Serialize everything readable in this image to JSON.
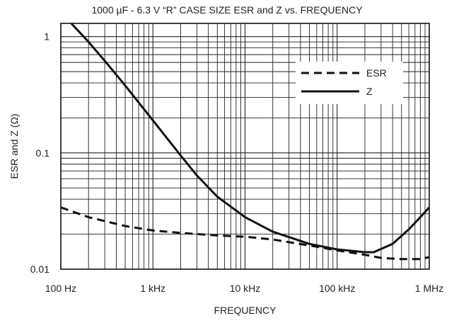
{
  "chart_data": {
    "type": "line",
    "title": "1000 µF - 6.3 V “R” CASE SIZE ESR and Z vs. FREQUENCY",
    "xlabel": "FREQUENCY",
    "ylabel": "ESR and Z (Ω)",
    "x_scale": "log",
    "y_scale": "log",
    "xlim": [
      100,
      1000000
    ],
    "ylim": [
      0.01,
      1.3
    ],
    "x_ticks": [
      {
        "value": 100,
        "label": "100 Hz"
      },
      {
        "value": 1000,
        "label": "1 kHz"
      },
      {
        "value": 10000,
        "label": "10 kHz"
      },
      {
        "value": 100000,
        "label": "100 kHz"
      },
      {
        "value": 1000000,
        "label": "1 MHz"
      }
    ],
    "y_ticks": [
      {
        "value": 1,
        "label": "1"
      },
      {
        "value": 0.1,
        "label": "0.1"
      },
      {
        "value": 0.01,
        "label": "0.01"
      }
    ],
    "grid": true,
    "legend_position": "top-right",
    "series": [
      {
        "name": "ESR",
        "style": "dashed",
        "color": "#111111",
        "x": [
          100,
          200,
          500,
          1000,
          2000,
          5000,
          10000,
          20000,
          50000,
          100000,
          200000,
          300000,
          500000,
          800000,
          1000000
        ],
        "y": [
          0.034,
          0.028,
          0.0235,
          0.0215,
          0.0205,
          0.0195,
          0.019,
          0.018,
          0.016,
          0.0145,
          0.0133,
          0.0125,
          0.0122,
          0.0122,
          0.0127
        ]
      },
      {
        "name": "Z",
        "style": "solid",
        "color": "#111111",
        "x": [
          130,
          200,
          300,
          500,
          1000,
          2000,
          3000,
          5000,
          10000,
          20000,
          50000,
          100000,
          200000,
          250000,
          400000,
          600000,
          800000,
          1000000
        ],
        "y": [
          1.3,
          0.9,
          0.62,
          0.38,
          0.19,
          0.095,
          0.064,
          0.042,
          0.028,
          0.021,
          0.0165,
          0.0148,
          0.014,
          0.014,
          0.0165,
          0.022,
          0.028,
          0.034
        ]
      }
    ]
  }
}
